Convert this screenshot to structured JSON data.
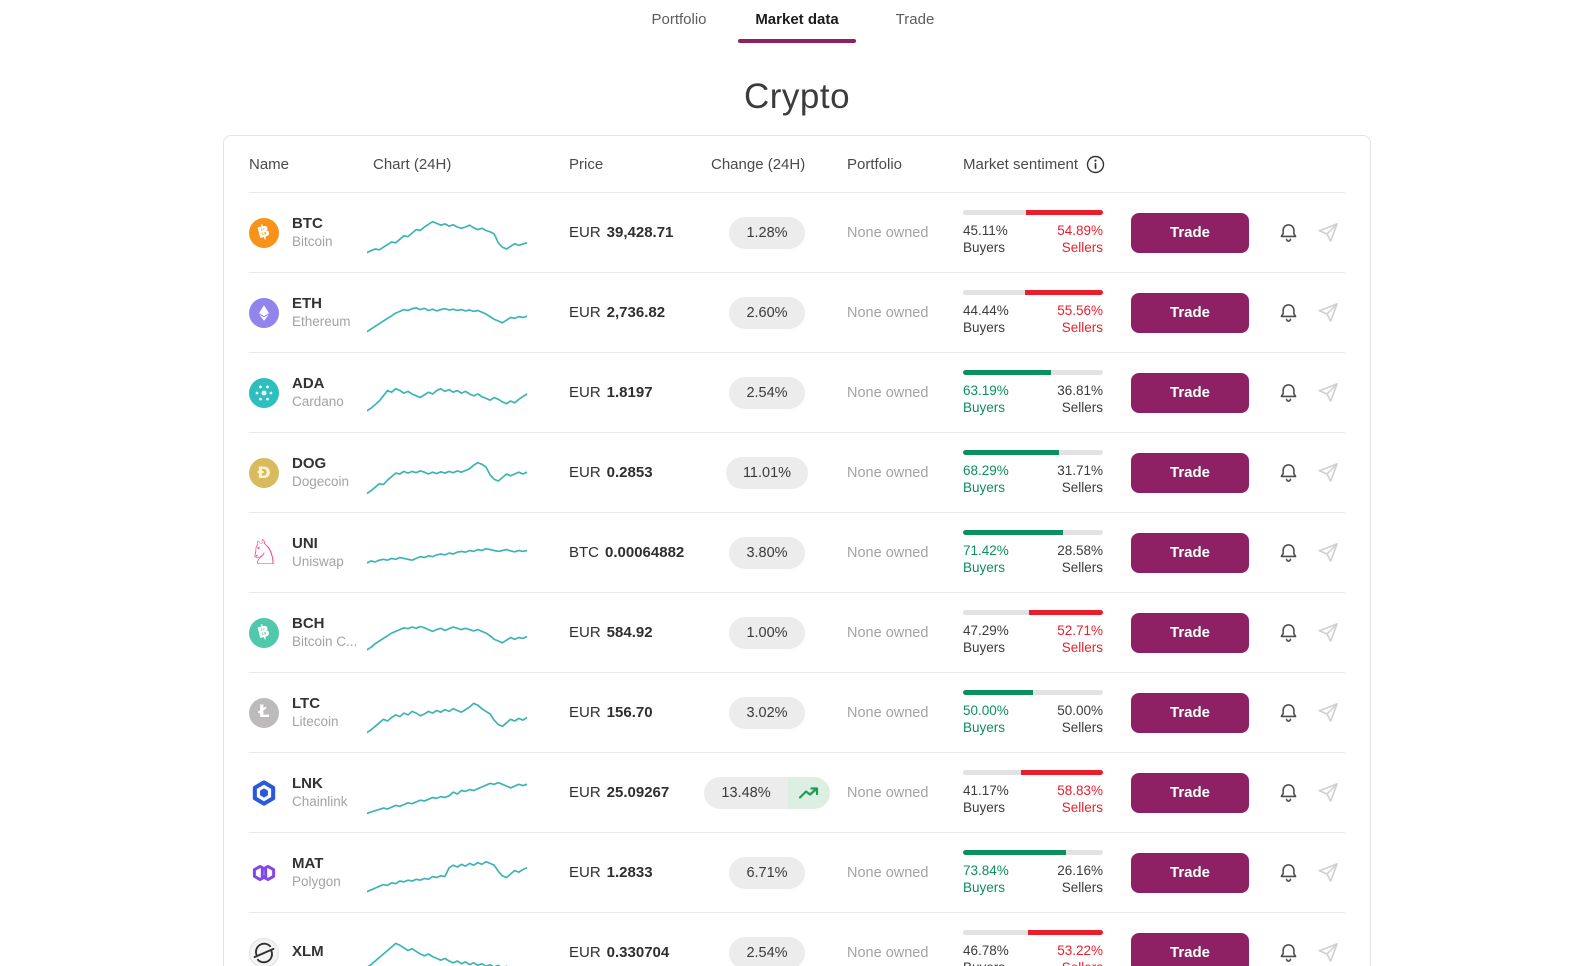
{
  "tabs": [
    {
      "label": "Portfolio",
      "active": false
    },
    {
      "label": "Market data",
      "active": true
    },
    {
      "label": "Trade",
      "active": false
    }
  ],
  "page_title": "Crypto",
  "colors": {
    "accent": "#8d2163",
    "sparkline": "#3cb4b6",
    "buyers_green": "#0c8f5f",
    "sellers_red": "#e81e2d",
    "bar_neutral": "#e2e2e2",
    "pill_bg": "#ececec"
  },
  "table": {
    "columns": [
      "Name",
      "Chart (24H)",
      "Price",
      "Change (24H)",
      "Portfolio",
      "Market sentiment"
    ],
    "buyers_label": "Buyers",
    "sellers_label": "Sellers",
    "trade_label": "Trade",
    "rows": [
      {
        "symbol": "BTC",
        "name": "Bitcoin",
        "icon": {
          "type": "glyph",
          "bg": "#f7931a",
          "fg": "#ffffff",
          "glyph": "฿",
          "rotate": -14,
          "fs": 17
        },
        "currency": "EUR",
        "price": "39,428.71",
        "change": "1.28%",
        "trend": false,
        "portfolio": "None owned",
        "sentiment": {
          "buyers": "45.11%",
          "sellers": "54.89%",
          "buyers_pct": 45.11,
          "majority": "sellers"
        }
      },
      {
        "symbol": "ETH",
        "name": "Ethereum",
        "icon": {
          "type": "eth",
          "bg": "#9184ee"
        },
        "currency": "EUR",
        "price": "2,736.82",
        "change": "2.60%",
        "trend": false,
        "portfolio": "None owned",
        "sentiment": {
          "buyers": "44.44%",
          "sellers": "55.56%",
          "buyers_pct": 44.44,
          "majority": "sellers"
        }
      },
      {
        "symbol": "ADA",
        "name": "Cardano",
        "icon": {
          "type": "dots",
          "bg": "#2cbfbe"
        },
        "currency": "EUR",
        "price": "1.8197",
        "change": "2.54%",
        "trend": false,
        "portfolio": "None owned",
        "sentiment": {
          "buyers": "63.19%",
          "sellers": "36.81%",
          "buyers_pct": 63.19,
          "majority": "buyers"
        }
      },
      {
        "symbol": "DOG",
        "name": "Dogecoin",
        "icon": {
          "type": "glyph",
          "bg": "#d8bb5f",
          "fg": "#fdf4cf",
          "glyph": "Ð",
          "rotate": 0,
          "fs": 16
        },
        "currency": "EUR",
        "price": "0.2853",
        "change": "11.01%",
        "trend": false,
        "portfolio": "None owned",
        "sentiment": {
          "buyers": "68.29%",
          "sellers": "31.71%",
          "buyers_pct": 68.29,
          "majority": "buyers"
        }
      },
      {
        "symbol": "UNI",
        "name": "Uniswap",
        "icon": {
          "type": "glyph",
          "bg": "transparent",
          "fg": "#ff2d88",
          "glyph": "♘",
          "rotate": 0,
          "fs": 34
        },
        "currency": "BTC",
        "price": "0.00064882",
        "change": "3.80%",
        "trend": false,
        "portfolio": "None owned",
        "sentiment": {
          "buyers": "71.42%",
          "sellers": "28.58%",
          "buyers_pct": 71.42,
          "majority": "buyers"
        }
      },
      {
        "symbol": "BCH",
        "name": "Bitcoin C...",
        "icon": {
          "type": "glyph",
          "bg": "#50c8ab",
          "fg": "#ffffff",
          "glyph": "฿",
          "rotate": -14,
          "fs": 17
        },
        "currency": "EUR",
        "price": "584.92",
        "change": "1.00%",
        "trend": false,
        "portfolio": "None owned",
        "sentiment": {
          "buyers": "47.29%",
          "sellers": "52.71%",
          "buyers_pct": 47.29,
          "majority": "sellers"
        }
      },
      {
        "symbol": "LTC",
        "name": "Litecoin",
        "icon": {
          "type": "glyph",
          "bg": "#bdbabc",
          "fg": "#ffffff",
          "glyph": "Ł",
          "rotate": 0,
          "fs": 17
        },
        "currency": "EUR",
        "price": "156.70",
        "change": "3.02%",
        "trend": false,
        "portfolio": "None owned",
        "sentiment": {
          "buyers": "50.00%",
          "sellers": "50.00%",
          "buyers_pct": 50.0,
          "majority": "buyers"
        }
      },
      {
        "symbol": "LNK",
        "name": "Chainlink",
        "icon": {
          "type": "chainlink",
          "bg": "#ffffff",
          "fg": "#2a5ada"
        },
        "currency": "EUR",
        "price": "25.09267",
        "change": "13.48%",
        "trend": true,
        "portfolio": "None owned",
        "sentiment": {
          "buyers": "41.17%",
          "sellers": "58.83%",
          "buyers_pct": 41.17,
          "majority": "sellers"
        }
      },
      {
        "symbol": "MAT",
        "name": "Polygon",
        "icon": {
          "type": "polygon",
          "bg": "transparent",
          "fg": "#8247e5"
        },
        "currency": "EUR",
        "price": "1.2833",
        "change": "6.71%",
        "trend": false,
        "portfolio": "None owned",
        "sentiment": {
          "buyers": "73.84%",
          "sellers": "26.16%",
          "buyers_pct": 73.84,
          "majority": "buyers"
        }
      },
      {
        "symbol": "XLM",
        "name": "",
        "icon": {
          "type": "stellar",
          "bg": "#f3f3f3",
          "fg": "#2e2e2e"
        },
        "currency": "EUR",
        "price": "0.330704",
        "change": "2.54%",
        "trend": false,
        "portfolio": "None owned",
        "sentiment": {
          "buyers": "46.78%",
          "sellers": "53.22%",
          "buyers_pct": 46.78,
          "majority": "sellers"
        }
      }
    ]
  },
  "chart_data": {
    "type": "line",
    "note": "24H sparkline per coin, normalized 0-100",
    "series": [
      {
        "name": "BTC",
        "values": [
          8,
          12,
          16,
          14,
          20,
          26,
          32,
          30,
          38,
          46,
          44,
          52,
          60,
          58,
          66,
          72,
          78,
          74,
          70,
          73,
          68,
          71,
          66,
          63,
          66,
          70,
          64,
          60,
          63,
          58,
          55,
          50,
          30,
          20,
          16,
          22,
          28,
          24,
          27,
          30
        ]
      },
      {
        "name": "ETH",
        "values": [
          10,
          16,
          22,
          28,
          34,
          40,
          46,
          52,
          56,
          60,
          58,
          62,
          64,
          60,
          63,
          58,
          61,
          57,
          60,
          62,
          59,
          61,
          58,
          60,
          57,
          59,
          56,
          58,
          54,
          50,
          44,
          38,
          34,
          30,
          36,
          42,
          40,
          44,
          42,
          45
        ]
      },
      {
        "name": "ADA",
        "values": [
          12,
          18,
          26,
          34,
          46,
          58,
          54,
          62,
          58,
          52,
          56,
          50,
          46,
          42,
          48,
          54,
          50,
          58,
          62,
          56,
          60,
          54,
          58,
          52,
          56,
          50,
          46,
          50,
          44,
          40,
          36,
          42,
          38,
          32,
          28,
          34,
          30,
          38,
          44,
          50
        ]
      },
      {
        "name": "DOG",
        "values": [
          6,
          12,
          20,
          28,
          26,
          36,
          44,
          52,
          50,
          56,
          52,
          56,
          53,
          57,
          54,
          50,
          54,
          51,
          55,
          52,
          56,
          53,
          57,
          54,
          58,
          62,
          70,
          76,
          72,
          66,
          48,
          38,
          34,
          42,
          50,
          46,
          50,
          54,
          50,
          54
        ]
      },
      {
        "name": "UNI",
        "values": [
          30,
          34,
          32,
          36,
          38,
          36,
          40,
          38,
          42,
          40,
          38,
          36,
          40,
          44,
          42,
          46,
          44,
          48,
          50,
          48,
          52,
          50,
          54,
          56,
          54,
          58,
          56,
          60,
          58,
          62,
          60,
          58,
          56,
          58,
          60,
          57,
          55,
          58,
          56,
          58
        ]
      },
      {
        "name": "BCH",
        "values": [
          14,
          20,
          28,
          34,
          40,
          46,
          52,
          56,
          60,
          64,
          62,
          66,
          63,
          67,
          64,
          60,
          56,
          60,
          63,
          58,
          62,
          66,
          63,
          60,
          63,
          60,
          57,
          60,
          56,
          52,
          46,
          38,
          34,
          30,
          36,
          42,
          38,
          42,
          40,
          44
        ]
      },
      {
        "name": "LTC",
        "values": [
          8,
          14,
          22,
          30,
          38,
          34,
          42,
          48,
          44,
          52,
          48,
          56,
          52,
          46,
          50,
          56,
          52,
          58,
          54,
          60,
          56,
          62,
          58,
          54,
          60,
          66,
          74,
          70,
          62,
          56,
          50,
          36,
          26,
          22,
          30,
          38,
          34,
          40,
          36,
          42
        ]
      },
      {
        "name": "LNK",
        "values": [
          6,
          9,
          12,
          15,
          18,
          16,
          20,
          24,
          22,
          26,
          30,
          28,
          32,
          36,
          34,
          38,
          42,
          40,
          44,
          42,
          46,
          54,
          50,
          58,
          56,
          60,
          58,
          62,
          66,
          70,
          74,
          72,
          76,
          72,
          68,
          64,
          68,
          72,
          69,
          72
        ]
      },
      {
        "name": "MAT",
        "values": [
          10,
          14,
          18,
          22,
          26,
          24,
          30,
          28,
          34,
          32,
          36,
          34,
          38,
          36,
          40,
          38,
          44,
          42,
          46,
          44,
          64,
          70,
          66,
          72,
          68,
          74,
          70,
          76,
          72,
          78,
          74,
          70,
          56,
          46,
          42,
          50,
          58,
          54,
          60,
          64
        ]
      },
      {
        "name": "XLM",
        "values": [
          20,
          26,
          34,
          42,
          50,
          58,
          66,
          74,
          70,
          64,
          58,
          62,
          56,
          50,
          46,
          50,
          44,
          40,
          36,
          40,
          34,
          30,
          34,
          28,
          32,
          26,
          30,
          24,
          28,
          22,
          26,
          20,
          24,
          18,
          22,
          16,
          20,
          14,
          18,
          16
        ]
      }
    ]
  }
}
